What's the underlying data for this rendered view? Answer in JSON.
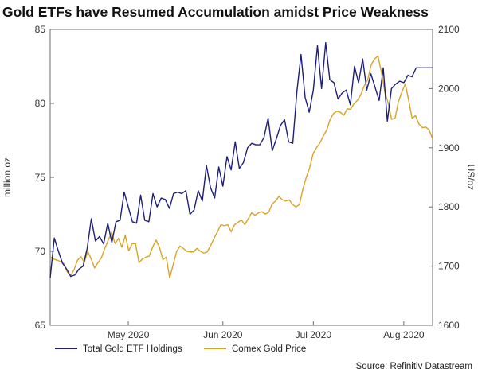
{
  "chart_data": {
    "type": "line",
    "title": "Gold ETFs have Resumed Accumulation amidst Price Weakness",
    "source": "Source: Refinitiv Datastream",
    "x_tick_labels": [
      "May 2020",
      "Jun 2020",
      "Jul 2020",
      "Aug 2020"
    ],
    "x_tick_index": [
      19,
      42,
      64,
      86
    ],
    "y_left": {
      "label": "million oz",
      "range": [
        65,
        85
      ],
      "ticks": [
        "65",
        "70",
        "75",
        "80",
        "85"
      ]
    },
    "y_right": {
      "label": "US/oz",
      "range": [
        1600,
        2100
      ],
      "ticks": [
        "1600",
        "1700",
        "1800",
        "1900",
        "2000",
        "2100"
      ]
    },
    "series": [
      {
        "name": "Total Gold ETF Holdings",
        "axis": "left",
        "color": "#1f1f7a",
        "values": [
          68.2,
          70.9,
          70.0,
          69.2,
          68.8,
          68.3,
          68.4,
          68.8,
          69.0,
          70.2,
          72.2,
          70.7,
          71.0,
          70.5,
          71.9,
          70.6,
          72.0,
          72.1,
          74.0,
          73.0,
          72.0,
          71.9,
          73.8,
          72.1,
          72.0,
          73.9,
          73.0,
          73.6,
          73.5,
          72.9,
          73.9,
          74.0,
          73.9,
          74.1,
          72.5,
          72.8,
          74.1,
          73.4,
          75.8,
          74.3,
          73.6,
          75.7,
          74.4,
          76.4,
          75.5,
          77.4,
          75.6,
          76.0,
          77.0,
          77.3,
          77.2,
          77.2,
          77.7,
          79.0,
          76.8,
          77.6,
          78.5,
          78.9,
          77.4,
          77.3,
          80.8,
          83.3,
          80.4,
          79.4,
          80.9,
          83.9,
          81.0,
          84.1,
          81.6,
          81.4,
          80.3,
          80.7,
          80.9,
          79.9,
          82.5,
          81.4,
          83.0,
          80.9,
          82.0,
          81.1,
          80.2,
          82.4,
          78.8,
          81.0,
          81.3,
          81.5,
          81.4,
          81.9,
          81.8,
          82.4,
          82.4,
          82.4,
          82.4,
          82.4
        ]
      },
      {
        "name": "Comex Gold Price",
        "axis": "right",
        "color": "#d9a425",
        "values": [
          1716,
          1712,
          1710,
          1708,
          1704,
          1690,
          1684,
          1694,
          1710,
          1716,
          1706,
          1725,
          1712,
          1697,
          1706,
          1714,
          1730,
          1744,
          1757,
          1738,
          1747,
          1732,
          1752,
          1726,
          1738,
          1738,
          1706,
          1712,
          1715,
          1717,
          1732,
          1744,
          1732,
          1711,
          1715,
          1680,
          1702,
          1724,
          1734,
          1730,
          1725,
          1724,
          1724,
          1730,
          1725,
          1722,
          1724,
          1735,
          1747,
          1758,
          1770,
          1768,
          1770,
          1758,
          1770,
          1774,
          1778,
          1770,
          1780,
          1790,
          1786,
          1790,
          1792,
          1788,
          1791,
          1805,
          1810,
          1818,
          1812,
          1810,
          1812,
          1804,
          1800,
          1804,
          1830,
          1850,
          1866,
          1890,
          1900,
          1908,
          1920,
          1930,
          1948,
          1958,
          1962,
          1960,
          1955,
          1966,
          1965,
          1975,
          1980,
          1990,
          2005,
          2015,
          2040,
          2050,
          2055,
          2028,
          1995,
          1975,
          1948,
          1950,
          1978,
          1994,
          2008,
          1980,
          1950,
          1954,
          1940,
          1934,
          1935,
          1930,
          1915
        ]
      }
    ]
  }
}
